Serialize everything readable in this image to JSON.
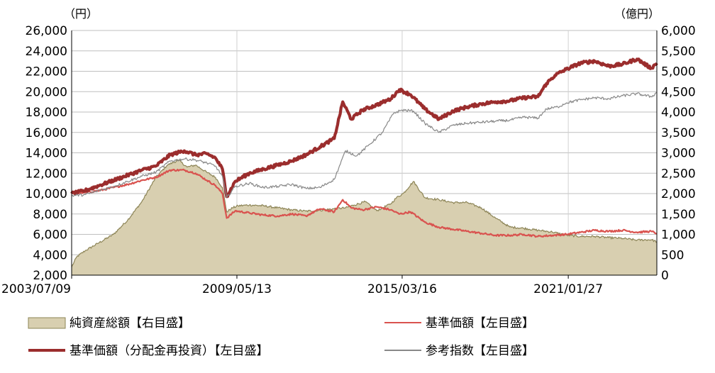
{
  "chart_data": {
    "type": "line",
    "title": "",
    "left_axis": {
      "unit_label": "（円）",
      "ylim": [
        2000,
        26000
      ],
      "ticks": [
        "2,000",
        "4,000",
        "6,000",
        "8,000",
        "10,000",
        "12,000",
        "14,000",
        "16,000",
        "18,000",
        "20,000",
        "22,000",
        "24,000",
        "26,000"
      ],
      "tick_values": [
        2000,
        4000,
        6000,
        8000,
        10000,
        12000,
        14000,
        16000,
        18000,
        20000,
        22000,
        24000,
        26000
      ]
    },
    "right_axis": {
      "unit_label": "（億円）",
      "ylim": [
        0,
        6000
      ],
      "ticks": [
        "0",
        "500",
        "1,000",
        "1,500",
        "2,000",
        "2,500",
        "3,000",
        "3,500",
        "4,000",
        "4,500",
        "5,000",
        "5,500",
        "6,000"
      ],
      "tick_values": [
        0,
        500,
        1000,
        1500,
        2000,
        2500,
        3000,
        3500,
        4000,
        4500,
        5000,
        5500,
        6000
      ]
    },
    "x_axis": {
      "ticks": [
        "2003/07/09",
        "2009/05/13",
        "2015/03/16",
        "2021/01/27"
      ],
      "tick_values": [
        2003.52,
        2009.36,
        2015.2,
        2021.07
      ],
      "xlim": [
        2003.52,
        2024.2
      ]
    },
    "grid": true,
    "legend_position": "bottom",
    "series": [
      {
        "name": "純資産総額【右目盛】",
        "axis": "right",
        "kind": "area",
        "color": "#d8cfb0",
        "edge_color": "#8c8456",
        "x": [
          2003.52,
          2003.7,
          2004.0,
          2004.5,
          2005.0,
          2005.5,
          2006.0,
          2006.5,
          2006.9,
          2007.3,
          2007.6,
          2007.9,
          2008.3,
          2008.6,
          2008.85,
          2009.0,
          2009.2,
          2009.4,
          2009.8,
          2010.3,
          2010.8,
          2011.3,
          2011.8,
          2012.3,
          2012.8,
          2013.2,
          2013.5,
          2013.9,
          2014.3,
          2014.8,
          2015.0,
          2015.25,
          2015.6,
          2016.0,
          2016.5,
          2017.0,
          2017.5,
          2018.0,
          2018.5,
          2019.0,
          2019.5,
          2020.0,
          2020.5,
          2021.0,
          2021.5,
          2022.0,
          2022.5,
          2023.0,
          2023.5,
          2024.0,
          2024.2
        ],
        "values": [
          200,
          450,
          600,
          800,
          1000,
          1350,
          1800,
          2400,
          2700,
          2820,
          2650,
          2700,
          2520,
          2400,
          2150,
          1550,
          1650,
          1700,
          1720,
          1700,
          1650,
          1600,
          1570,
          1590,
          1630,
          1650,
          1720,
          1800,
          1580,
          1750,
          1900,
          2010,
          2300,
          1900,
          1850,
          1780,
          1780,
          1650,
          1400,
          1180,
          1150,
          1100,
          1060,
          980,
          950,
          950,
          920,
          900,
          860,
          870,
          820
        ]
      },
      {
        "name": "基準価額【左目盛】",
        "axis": "left",
        "kind": "line",
        "color": "#d9534f",
        "x": [
          2003.52,
          2004.0,
          2004.5,
          2005.0,
          2005.5,
          2006.0,
          2006.5,
          2007.0,
          2007.5,
          2007.9,
          2008.3,
          2008.6,
          2008.85,
          2009.0,
          2009.3,
          2009.8,
          2010.3,
          2010.8,
          2011.3,
          2011.8,
          2012.3,
          2012.8,
          2013.1,
          2013.4,
          2013.8,
          2014.3,
          2014.8,
          2015.1,
          2015.5,
          2016.0,
          2016.5,
          2017.0,
          2017.5,
          2018.0,
          2018.5,
          2019.0,
          2019.5,
          2020.0,
          2020.5,
          2021.0,
          2021.5,
          2022.0,
          2022.5,
          2023.0,
          2023.5,
          2024.0,
          2024.2
        ],
        "values": [
          10000,
          10100,
          10300,
          10600,
          10900,
          11300,
          11600,
          12300,
          12300,
          12000,
          11300,
          10800,
          10000,
          7600,
          8300,
          8100,
          7900,
          7800,
          8000,
          7800,
          8500,
          8200,
          9400,
          8600,
          8400,
          8700,
          8400,
          8000,
          8200,
          7200,
          6700,
          6500,
          6300,
          6100,
          5900,
          5900,
          6000,
          5800,
          5900,
          6000,
          6200,
          6400,
          6300,
          6400,
          6200,
          6300,
          6100
        ]
      },
      {
        "name": "基準価額（分配金再投資）【左目盛】",
        "axis": "left",
        "kind": "line",
        "color": "#9b2d2d",
        "x": [
          2003.52,
          2004.0,
          2004.5,
          2005.0,
          2005.5,
          2006.0,
          2006.5,
          2007.0,
          2007.5,
          2007.9,
          2008.3,
          2008.6,
          2008.85,
          2009.0,
          2009.3,
          2009.8,
          2010.3,
          2010.8,
          2011.3,
          2011.8,
          2012.3,
          2012.8,
          2013.1,
          2013.4,
          2013.8,
          2014.3,
          2014.8,
          2015.1,
          2015.5,
          2016.0,
          2016.5,
          2017.0,
          2017.5,
          2018.0,
          2018.5,
          2019.0,
          2019.5,
          2020.0,
          2020.3,
          2020.6,
          2021.0,
          2021.5,
          2022.0,
          2022.5,
          2023.0,
          2023.5,
          2024.0,
          2024.2
        ],
        "values": [
          10000,
          10300,
          10800,
          11300,
          11800,
          12300,
          12700,
          13800,
          14200,
          13800,
          13900,
          13500,
          12400,
          9700,
          11200,
          12000,
          12400,
          12800,
          13200,
          13800,
          14600,
          15400,
          19000,
          17300,
          18200,
          18700,
          19300,
          20200,
          19700,
          18300,
          17300,
          18100,
          18500,
          18800,
          19000,
          19100,
          19400,
          19500,
          20800,
          21600,
          22200,
          22800,
          23000,
          22500,
          22700,
          23200,
          22300,
          22800
        ]
      },
      {
        "name": "参考指数【左目盛】",
        "axis": "left",
        "kind": "line",
        "color": "#888888",
        "x": [
          2003.52,
          2004.0,
          2004.5,
          2005.0,
          2005.5,
          2006.0,
          2006.5,
          2007.0,
          2007.5,
          2007.9,
          2008.3,
          2008.6,
          2008.85,
          2009.0,
          2009.3,
          2009.8,
          2010.3,
          2010.8,
          2011.3,
          2011.8,
          2012.3,
          2012.8,
          2013.2,
          2013.6,
          2014.0,
          2014.5,
          2014.9,
          2015.2,
          2015.6,
          2016.0,
          2016.5,
          2017.0,
          2017.5,
          2018.0,
          2018.5,
          2019.0,
          2019.5,
          2020.0,
          2020.3,
          2020.7,
          2021.0,
          2021.5,
          2022.0,
          2022.5,
          2023.0,
          2023.5,
          2024.0,
          2024.2
        ],
        "values": [
          9800,
          9900,
          10300,
          10700,
          11200,
          11700,
          12100,
          13200,
          13400,
          13300,
          13000,
          12700,
          11700,
          9600,
          10700,
          11000,
          10600,
          10700,
          10900,
          10500,
          10600,
          11400,
          14200,
          13700,
          14700,
          16000,
          17900,
          18200,
          18100,
          16900,
          16000,
          16700,
          16900,
          17000,
          17100,
          17200,
          17500,
          17400,
          18300,
          18500,
          18900,
          19200,
          19400,
          19300,
          19600,
          19800,
          19500,
          19900
        ]
      }
    ],
    "legend": [
      {
        "label": "純資産総額【右目盛】",
        "style": "area",
        "color": "#d8cfb0",
        "edge": "#8c8456"
      },
      {
        "label": "基準価額【左目盛】",
        "style": "line-thin",
        "color": "#d9534f"
      },
      {
        "label": "基準価額（分配金再投資）【左目盛】",
        "style": "line-thick",
        "color": "#9b2d2d"
      },
      {
        "label": "参考指数【左目盛】",
        "style": "line-thin",
        "color": "#888888"
      }
    ]
  }
}
